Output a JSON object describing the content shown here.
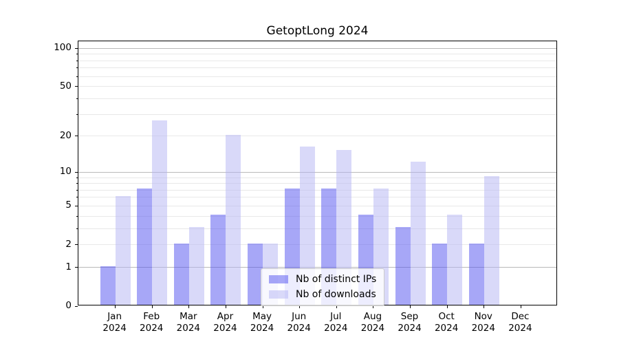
{
  "chart_data": {
    "type": "bar",
    "title": "GetoptLong 2024",
    "categories": [
      {
        "month": "Jan",
        "year": "2024"
      },
      {
        "month": "Feb",
        "year": "2024"
      },
      {
        "month": "Mar",
        "year": "2024"
      },
      {
        "month": "Apr",
        "year": "2024"
      },
      {
        "month": "May",
        "year": "2024"
      },
      {
        "month": "Jun",
        "year": "2024"
      },
      {
        "month": "Jul",
        "year": "2024"
      },
      {
        "month": "Aug",
        "year": "2024"
      },
      {
        "month": "Sep",
        "year": "2024"
      },
      {
        "month": "Oct",
        "year": "2024"
      },
      {
        "month": "Nov",
        "year": "2024"
      },
      {
        "month": "Dec",
        "year": "2024"
      }
    ],
    "series": [
      {
        "name": "Nb of distinct IPs",
        "color": "rgba(80,80,240,0.5)",
        "values": [
          1,
          7,
          2,
          4,
          2,
          7,
          7,
          4,
          3,
          2,
          2,
          0
        ]
      },
      {
        "name": "Nb of downloads",
        "color": "rgba(180,180,243,0.5)",
        "values": [
          6,
          26,
          3,
          20,
          2,
          16,
          15,
          7,
          12,
          4,
          9,
          0
        ]
      }
    ],
    "xlabel": "",
    "ylabel": "",
    "yscale": "log10(1+v)",
    "ylim": [
      0,
      113
    ],
    "yticks": [
      0,
      1,
      2,
      5,
      10,
      20,
      50,
      100
    ],
    "grid": "on",
    "grid_major_values": [
      1,
      10,
      100
    ],
    "grid_minor_values": [
      2,
      3,
      4,
      5,
      6,
      7,
      8,
      9,
      20,
      30,
      40,
      50,
      60,
      70,
      80,
      90
    ],
    "legend_position": "lower-center-inside"
  },
  "style": {
    "grid_major_color": "#b9b9b9",
    "grid_minor_color": "#e8e8e8",
    "axis_color": "#000000",
    "legend_border_color": "#cccccc"
  }
}
